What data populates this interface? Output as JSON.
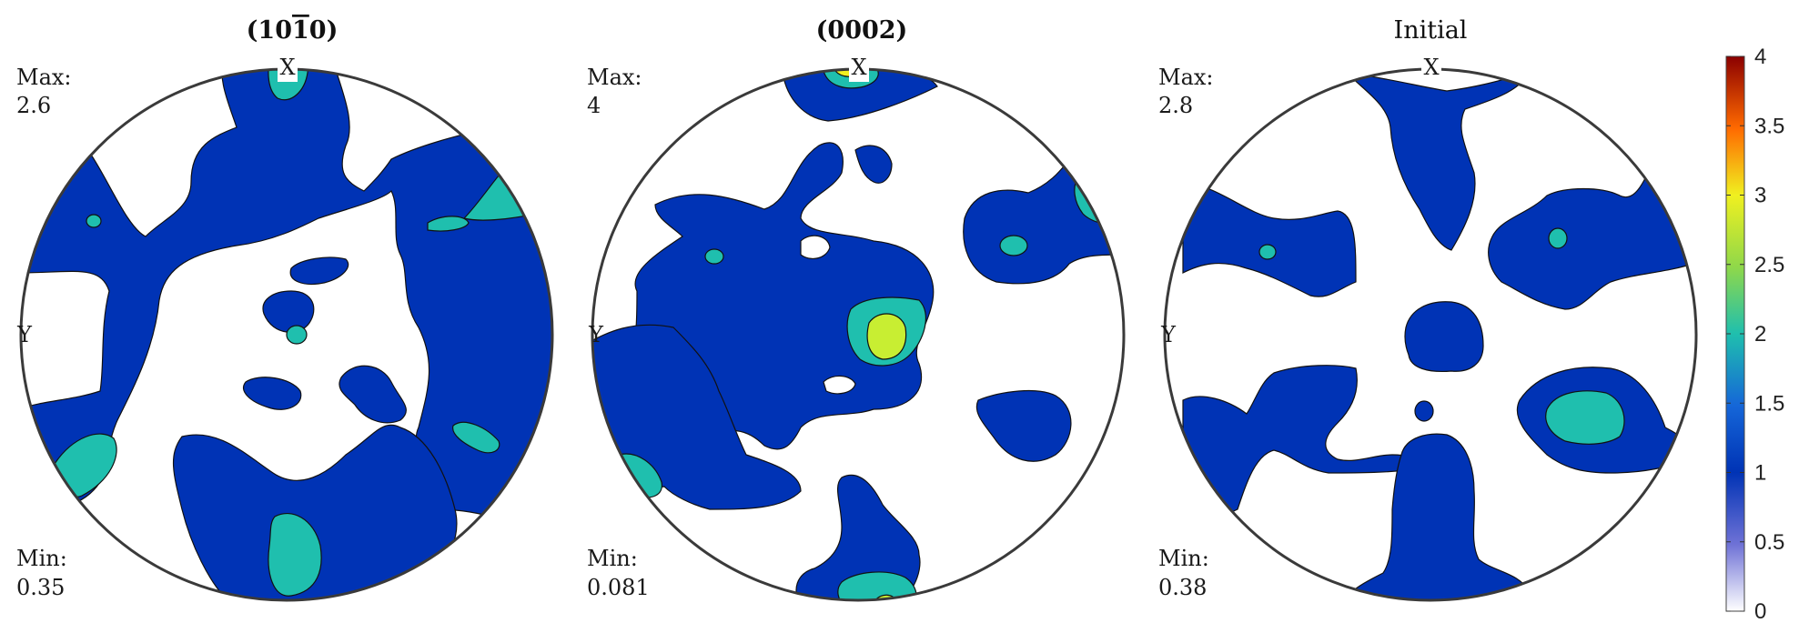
{
  "chart_data": {
    "type": "heatmap",
    "subtype": "pole-figure",
    "colormap": "jet",
    "colorbar": {
      "range": [
        0,
        4
      ],
      "ticks": [
        "0",
        "0.5",
        "1",
        "1.5",
        "2",
        "2.5",
        "3",
        "3.5",
        "4"
      ],
      "placement": "right"
    },
    "contour_levels": [
      1,
      2,
      3
    ],
    "panels": [
      {
        "title_html": "(10<tspan text-decoration=\"overline\">1</tspan>0)",
        "title_text": "(10Ŷ0)",
        "title_bold": true,
        "x_label": "X",
        "y_label": "Y",
        "max_label": "Max:",
        "max_value": "2.6",
        "min_label": "Min:",
        "min_value": "0.35"
      },
      {
        "title_text": "(0002)",
        "title_bold": true,
        "x_label": "X",
        "y_label": "Y",
        "max_label": "Max:",
        "max_value": "4",
        "min_label": "Min:",
        "min_value": "0.081"
      },
      {
        "title_text": "Initial",
        "title_bold": false,
        "x_label": "X",
        "y_label": "Y",
        "max_label": "Max:",
        "max_value": "2.8",
        "min_label": "Min:",
        "min_value": "0.38"
      }
    ]
  }
}
